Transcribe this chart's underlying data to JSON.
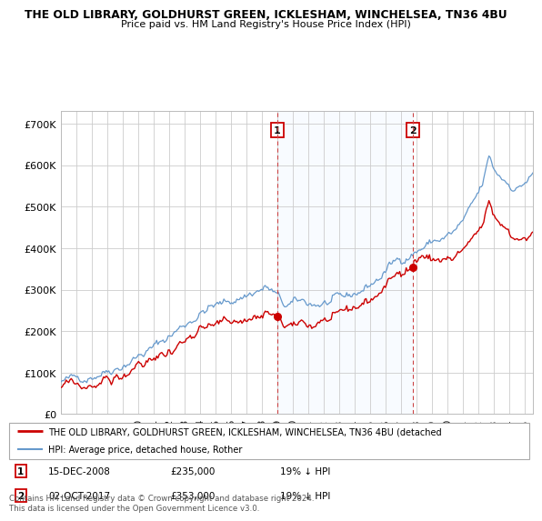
{
  "title1": "THE OLD LIBRARY, GOLDHURST GREEN, ICKLESHAM, WINCHELSEA, TN36 4BU",
  "title2": "Price paid vs. HM Land Registry's House Price Index (HPI)",
  "ylabel_ticks": [
    "£0",
    "£100K",
    "£200K",
    "£300K",
    "£400K",
    "£500K",
    "£600K",
    "£700K"
  ],
  "ytick_values": [
    0,
    100000,
    200000,
    300000,
    400000,
    500000,
    600000,
    700000
  ],
  "ylim": [
    0,
    730000
  ],
  "xlim_start": 1995.0,
  "xlim_end": 2025.5,
  "marker1_date": 2008.96,
  "marker2_date": 2017.75,
  "marker1_price_val": 235000,
  "marker2_price_val": 353000,
  "marker1_label": "15-DEC-2008",
  "marker1_price": "£235,000",
  "marker1_hpi": "19% ↓ HPI",
  "marker2_label": "02-OCT-2017",
  "marker2_price": "£353,000",
  "marker2_hpi": "19% ↓ HPI",
  "legend_line1": "THE OLD LIBRARY, GOLDHURST GREEN, ICKLESHAM, WINCHELSEA, TN36 4BU (detached",
  "legend_line2": "HPI: Average price, detached house, Rother",
  "red_color": "#cc0000",
  "blue_color": "#6699cc",
  "shade_color": "#ddeeff",
  "footer": "Contains HM Land Registry data © Crown copyright and database right 2024.\nThis data is licensed under the Open Government Licence v3.0.",
  "xtick_years": [
    1995,
    1996,
    1997,
    1998,
    1999,
    2000,
    2001,
    2002,
    2003,
    2004,
    2005,
    2006,
    2007,
    2008,
    2009,
    2010,
    2011,
    2012,
    2013,
    2014,
    2015,
    2016,
    2017,
    2018,
    2019,
    2020,
    2021,
    2022,
    2023,
    2024,
    2025
  ]
}
